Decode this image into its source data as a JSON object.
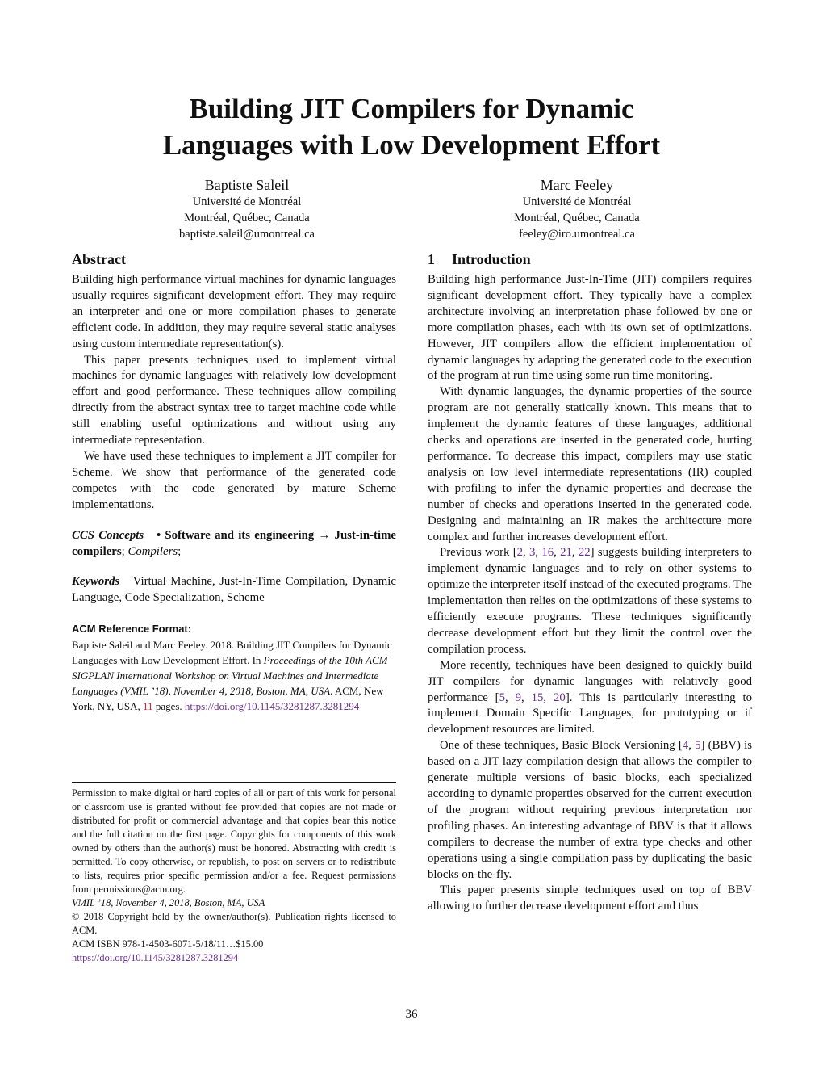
{
  "title": {
    "line1": "Building JIT Compilers for Dynamic",
    "line2": "Languages with Low Development Effort"
  },
  "authors": [
    {
      "name": "Baptiste Saleil",
      "affiliation": "Université de Montréal",
      "location": "Montréal, Québec, Canada",
      "email": "baptiste.saleil@umontreal.ca"
    },
    {
      "name": "Marc Feeley",
      "affiliation": "Université de Montréal",
      "location": "Montréal, Québec, Canada",
      "email": "feeley@iro.umontreal.ca"
    }
  ],
  "abstract": {
    "heading": "Abstract",
    "p1": "Building high performance virtual machines for dynamic languages usually requires significant development effort. They may require an interpreter and one or more compilation phases to generate efficient code. In addition, they may require several static analyses using custom intermediate representation(s).",
    "p2": "This paper presents techniques used to implement virtual machines for dynamic languages with relatively low development effort and good performance. These techniques allow compiling directly from the abstract syntax tree to target machine code while still enabling useful optimizations and without using any intermediate representation.",
    "p3": "We have used these techniques to implement a JIT compiler for Scheme. We show that performance of the generated code competes with the code generated by mature Scheme implementations."
  },
  "ccs": {
    "label": "CCS Concepts",
    "bullet": "• Software and its engineering → Just-in-time compilers",
    "sep": "; ",
    "item2": "Compilers",
    "end": ";"
  },
  "keywords": {
    "label": "Keywords",
    "text": "Virtual Machine, Just-In-Time Compilation, Dynamic Language, Code Specialization, Scheme"
  },
  "acm_ref": {
    "heading": "ACM Reference Format:",
    "part1": "Baptiste Saleil and Marc Feeley. 2018. Building JIT Compilers for Dynamic Languages with Low Development Effort. In ",
    "proceedings": "Proceedings of the 10th ACM SIGPLAN International Workshop on Virtual Machines and Intermediate Languages (VMIL ’18), November 4, 2018, Boston, MA, USA",
    "part2": ". ACM, New York, NY, USA, ",
    "pages": "11",
    "part3": " pages. ",
    "doi": "https://doi.org/10.1145/3281287.3281294"
  },
  "footnote": {
    "permission": "Permission to make digital or hard copies of all or part of this work for personal or classroom use is granted without fee provided that copies are not made or distributed for profit or commercial advantage and that copies bear this notice and the full citation on the first page. Copyrights for components of this work owned by others than the author(s) must be honored. Abstracting with credit is permitted. To copy otherwise, or republish, to post on servers or to redistribute to lists, requires prior specific permission and/or a fee. Request permissions from permissions@acm.org.",
    "venue": "VMIL ’18, November 4, 2018, Boston, MA, USA",
    "copyright": "© 2018 Copyright held by the owner/author(s). Publication rights licensed to ACM.",
    "isbn": "ACM ISBN 978-1-4503-6071-5/18/11…$15.00",
    "doi": "https://doi.org/10.1145/3281287.3281294"
  },
  "intro": {
    "number": "1",
    "heading": "Introduction",
    "p1": "Building high performance Just-In-Time (JIT) compilers requires significant development effort. They typically have a complex architecture involving an interpretation phase followed by one or more compilation phases, each with its own set of optimizations. However, JIT compilers allow the efficient implementation of dynamic languages by adapting the generated code to the execution of the program at run time using some run time monitoring.",
    "p2": "With dynamic languages, the dynamic properties of the source program are not generally statically known. This means that to implement the dynamic features of these languages, additional checks and operations are inserted in the generated code, hurting performance. To decrease this impact, compilers may use static analysis on low level intermediate representations (IR) coupled with profiling to infer the dynamic properties and decrease the number of checks and operations inserted in the generated code. Designing and maintaining an IR makes the architecture more complex and further increases development effort.",
    "p3_a": "Previous work [",
    "p3_refs": [
      "2",
      "3",
      "16",
      "21",
      "22"
    ],
    "p3_b": "] suggests building interpreters to implement dynamic languages and to rely on other systems to optimize the interpreter itself instead of the executed programs. The implementation then relies on the optimizations of these systems to efficiently execute programs. These techniques significantly decrease development effort but they limit the control over the compilation process.",
    "p4_a": "More recently, techniques have been designed to quickly build JIT compilers for dynamic languages with relatively good performance [",
    "p4_refs": [
      "5",
      "9",
      "15",
      "20"
    ],
    "p4_b": "]. This is particularly interesting to implement Domain Specific Languages, for prototyping or if development resources are limited.",
    "p5_a": "One of these techniques, Basic Block Versioning [",
    "p5_refs": [
      "4",
      "5"
    ],
    "p5_b": "] (BBV) is based on a JIT lazy compilation design that allows the compiler to generate multiple versions of basic blocks, each specialized according to dynamic properties observed for the current execution of the program without requiring previous interpretation nor profiling phases. An interesting advantage of BBV is that it allows compilers to decrease the number of extra type checks and other operations using a single compilation pass by duplicating the basic blocks on-the-fly.",
    "p6": "This paper presents simple techniques used on top of BBV allowing to further decrease development effort and thus"
  },
  "page_number": "36"
}
